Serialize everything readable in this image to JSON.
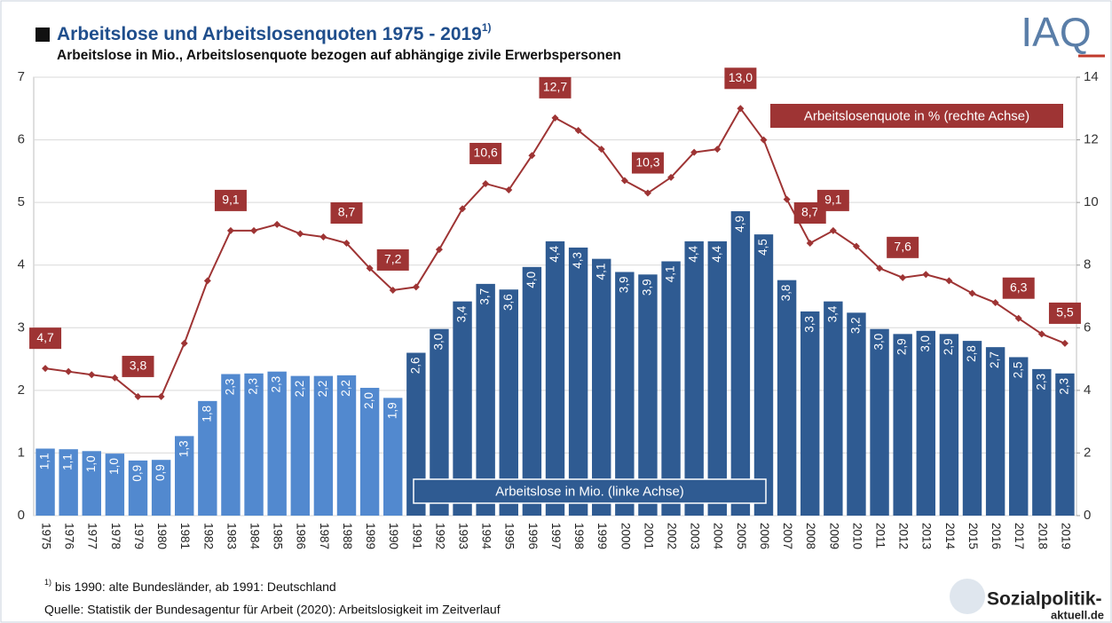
{
  "chart_data": {
    "type": "bar",
    "title": "Arbeitslose und Arbeitslosenquoten 1975 - 2019",
    "title_note": "1)",
    "subtitle": "Arbeitslose in Mio., Arbeitslosenquote bezogen auf abhängige zivile Erwerbspersonen",
    "categories": [
      "1975",
      "1976",
      "1977",
      "1978",
      "1979",
      "1980",
      "1981",
      "1982",
      "1983",
      "1984",
      "1985",
      "1986",
      "1987",
      "1988",
      "1989",
      "1990",
      "1991",
      "1992",
      "1993",
      "1994",
      "1995",
      "1996",
      "1997",
      "1998",
      "1999",
      "2000",
      "2001",
      "2002",
      "2003",
      "2004",
      "2005",
      "2006",
      "2007",
      "2008",
      "2009",
      "2010",
      "2011",
      "2012",
      "2013",
      "2014",
      "2015",
      "2016",
      "2017",
      "2018",
      "2019"
    ],
    "series": [
      {
        "name": "Arbeitslose in Mio. (linke Achse)",
        "type": "bar",
        "axis": "y",
        "color": "#2f5b92",
        "colors": [
          "#5289cf",
          "#5289cf",
          "#5289cf",
          "#5289cf",
          "#5289cf",
          "#5289cf",
          "#5289cf",
          "#5289cf",
          "#5289cf",
          "#5289cf",
          "#5289cf",
          "#5289cf",
          "#5289cf",
          "#5289cf",
          "#5289cf",
          "#5289cf",
          "#2f5b92",
          "#2f5b92",
          "#2f5b92",
          "#2f5b92",
          "#2f5b92",
          "#2f5b92",
          "#2f5b92",
          "#2f5b92",
          "#2f5b92",
          "#2f5b92",
          "#2f5b92",
          "#2f5b92",
          "#2f5b92",
          "#2f5b92",
          "#2f5b92",
          "#2f5b92",
          "#2f5b92",
          "#2f5b92",
          "#2f5b92",
          "#2f5b92",
          "#2f5b92",
          "#2f5b92",
          "#2f5b92",
          "#2f5b92",
          "#2f5b92",
          "#2f5b92",
          "#2f5b92",
          "#2f5b92",
          "#2f5b92"
        ],
        "values": [
          1.07,
          1.06,
          1.03,
          0.99,
          0.88,
          0.89,
          1.27,
          1.83,
          2.26,
          2.27,
          2.3,
          2.23,
          2.23,
          2.24,
          2.04,
          1.88,
          2.6,
          2.98,
          3.42,
          3.7,
          3.61,
          3.97,
          4.38,
          4.28,
          4.1,
          3.89,
          3.85,
          4.06,
          4.38,
          4.38,
          4.86,
          4.49,
          3.76,
          3.26,
          3.42,
          3.24,
          2.98,
          2.9,
          2.95,
          2.9,
          2.79,
          2.69,
          2.53,
          2.34,
          2.27
        ],
        "value_labels": [
          "1,1",
          "1,1",
          "1,0",
          "1,0",
          "0,9",
          "0,9",
          "1,3",
          "1,8",
          "2,3",
          "2,3",
          "2,3",
          "2,2",
          "2,2",
          "2,2",
          "2,0",
          "1,9",
          "2,6",
          "3,0",
          "3,4",
          "3,7",
          "3,6",
          "4,0",
          "4,4",
          "4,3",
          "4,1",
          "3,9",
          "3,9",
          "4,1",
          "4,4",
          "4,4",
          "4,9",
          "4,5",
          "3,8",
          "3,3",
          "3,4",
          "3,2",
          "3,0",
          "2,9",
          "3,0",
          "2,9",
          "2,8",
          "2,7",
          "2,5",
          "2,3",
          "2,3"
        ]
      },
      {
        "name": "Arbeitslosenquote in % (rechte Achse)",
        "type": "line",
        "axis": "y2",
        "color": "#9e3434",
        "values": [
          4.7,
          4.6,
          4.5,
          4.4,
          3.8,
          3.8,
          5.5,
          7.5,
          9.1,
          9.1,
          9.3,
          9.0,
          8.9,
          8.7,
          7.9,
          7.2,
          7.3,
          8.5,
          9.8,
          10.6,
          10.4,
          11.5,
          12.7,
          12.3,
          11.7,
          10.7,
          10.3,
          10.8,
          11.6,
          11.7,
          13.0,
          12.0,
          10.1,
          8.7,
          9.1,
          8.6,
          7.9,
          7.6,
          7.7,
          7.5,
          7.1,
          6.8,
          6.3,
          5.8,
          5.5
        ],
        "value_labels": [
          "4,7",
          null,
          null,
          null,
          "3,8",
          null,
          null,
          null,
          "9,1",
          null,
          null,
          null,
          null,
          "8,7",
          null,
          "7,2",
          null,
          null,
          null,
          "10,6",
          null,
          null,
          "12,7",
          null,
          null,
          null,
          "10,3",
          null,
          null,
          null,
          "13,0",
          null,
          null,
          "8,7",
          "9,1",
          null,
          null,
          "7,6",
          null,
          null,
          null,
          null,
          "6,3",
          null,
          "5,5"
        ]
      }
    ],
    "ylim": [
      0,
      7
    ],
    "yticks": [
      0,
      1,
      2,
      3,
      4,
      5,
      6,
      7
    ],
    "y2lim": [
      0,
      14
    ],
    "y2ticks": [
      0,
      2,
      4,
      6,
      8,
      10,
      12,
      14
    ],
    "grid": true,
    "footnote": {
      "mark": "1)",
      "text": " bis 1990: alte Bundesländer, ab 1991: Deutschland"
    },
    "source": "Quelle: Statistik der Bundesagentur für Arbeit (2020): Arbeitslosigkeit im Zeitverlauf",
    "logos": [
      "IAQ",
      "Sozialpolitik-",
      "aktuell.de"
    ]
  }
}
